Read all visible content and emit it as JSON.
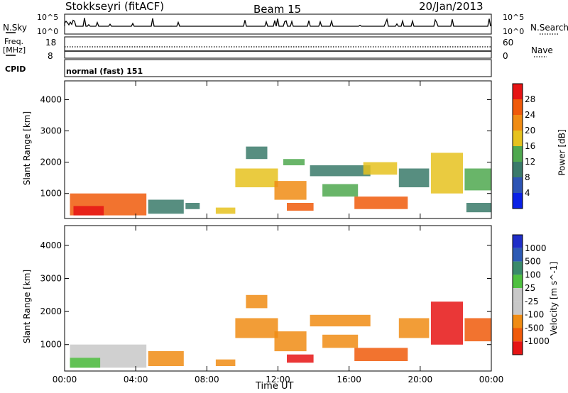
{
  "header": {
    "station": "Stokkseyri (fitACF)",
    "beam": "Beam 15",
    "date": "20/Jan/2013"
  },
  "noise_panel": {
    "left_label": "N.Sky",
    "right_label": "N.Search",
    "ticks": [
      "10^5",
      "10^0"
    ]
  },
  "freq_panel": {
    "left_label_1": "Freq.",
    "left_label_2": "[MHz]",
    "left_ticks": [
      "18",
      "8"
    ],
    "right_label": "Nave",
    "right_ticks": [
      "60",
      "0"
    ]
  },
  "cpid": {
    "label": "CPID",
    "mode": "normal (fast) 151"
  },
  "colors": {
    "power": [
      "#0a21e6",
      "#2d54b4",
      "#3a7a6a",
      "#4fa84f",
      "#e6c21e",
      "#f08c14",
      "#f05a0a",
      "#e61414"
    ],
    "velocity": [
      "#e61414",
      "#f05a0a",
      "#f08c14",
      "#c8c8c8",
      "#c8c8c8",
      "#4fc040",
      "#3a8a6a",
      "#2d5ab4",
      "#1f2ec8"
    ]
  },
  "chart_data": [
    {
      "type": "heatmap",
      "title": "",
      "xlabel": "",
      "ylabel": "Slant Range [km]",
      "xlim": [
        0,
        24
      ],
      "ylim": [
        200,
        4600
      ],
      "x_ticks": [
        "00:00",
        "04:00",
        "08:00",
        "12:00",
        "16:00",
        "20:00",
        "00:00"
      ],
      "y_ticks": [
        1000,
        2000,
        3000,
        4000
      ],
      "colorbar": {
        "label": "Power [dB]",
        "ticks": [
          "4",
          "8",
          "12",
          "16",
          "20",
          "24",
          "28"
        ]
      },
      "regions": [
        {
          "t0": 0.3,
          "t1": 4.6,
          "r0": 300,
          "r1": 1000,
          "level": 7
        },
        {
          "t0": 0.5,
          "t1": 2.2,
          "r0": 300,
          "r1": 600,
          "level": 8
        },
        {
          "t0": 4.7,
          "t1": 6.7,
          "r0": 350,
          "r1": 800,
          "level": 3
        },
        {
          "t0": 6.8,
          "t1": 7.6,
          "r0": 500,
          "r1": 700,
          "level": 3
        },
        {
          "t0": 8.5,
          "t1": 9.6,
          "r0": 350,
          "r1": 550,
          "level": 5
        },
        {
          "t0": 9.6,
          "t1": 12.0,
          "r0": 1200,
          "r1": 1800,
          "level": 5
        },
        {
          "t0": 10.2,
          "t1": 11.4,
          "r0": 2100,
          "r1": 2500,
          "level": 3
        },
        {
          "t0": 11.8,
          "t1": 13.6,
          "r0": 800,
          "r1": 1400,
          "level": 6
        },
        {
          "t0": 12.5,
          "t1": 14.0,
          "r0": 450,
          "r1": 700,
          "level": 7
        },
        {
          "t0": 12.3,
          "t1": 13.5,
          "r0": 1900,
          "r1": 2100,
          "level": 4
        },
        {
          "t0": 13.8,
          "t1": 17.2,
          "r0": 1550,
          "r1": 1900,
          "level": 3
        },
        {
          "t0": 14.5,
          "t1": 16.5,
          "r0": 900,
          "r1": 1300,
          "level": 4
        },
        {
          "t0": 16.8,
          "t1": 18.7,
          "r0": 1600,
          "r1": 2000,
          "level": 5
        },
        {
          "t0": 16.3,
          "t1": 19.3,
          "r0": 500,
          "r1": 900,
          "level": 7
        },
        {
          "t0": 18.8,
          "t1": 20.5,
          "r0": 1200,
          "r1": 1800,
          "level": 3
        },
        {
          "t0": 20.6,
          "t1": 22.4,
          "r0": 1000,
          "r1": 2300,
          "level": 5
        },
        {
          "t0": 22.5,
          "t1": 24.0,
          "r0": 1100,
          "r1": 1800,
          "level": 4
        },
        {
          "t0": 22.6,
          "t1": 24.0,
          "r0": 400,
          "r1": 700,
          "level": 3
        }
      ]
    },
    {
      "type": "heatmap",
      "title": "",
      "xlabel": "Time UT",
      "ylabel": "Slant Range [km]",
      "xlim": [
        0,
        24
      ],
      "ylim": [
        200,
        4600
      ],
      "x_ticks": [
        "00:00",
        "04:00",
        "08:00",
        "12:00",
        "16:00",
        "20:00",
        "00:00"
      ],
      "y_ticks": [
        1000,
        2000,
        3000,
        4000
      ],
      "colorbar": {
        "label": "Velocity [m s^-1]",
        "ticks": [
          "1000",
          "500",
          "100",
          "25",
          "-25",
          "-100",
          "-500",
          "-1000"
        ]
      },
      "regions": [
        {
          "t0": 0.3,
          "t1": 4.6,
          "r0": 300,
          "r1": 1000,
          "level": 5
        },
        {
          "t0": 0.3,
          "t1": 2.0,
          "r0": 300,
          "r1": 600,
          "level": 6
        },
        {
          "t0": 4.7,
          "t1": 6.7,
          "r0": 350,
          "r1": 800,
          "level": 3
        },
        {
          "t0": 8.5,
          "t1": 9.6,
          "r0": 350,
          "r1": 550,
          "level": 3
        },
        {
          "t0": 9.6,
          "t1": 12.0,
          "r0": 1200,
          "r1": 1800,
          "level": 3
        },
        {
          "t0": 10.2,
          "t1": 11.4,
          "r0": 2100,
          "r1": 2500,
          "level": 3
        },
        {
          "t0": 11.8,
          "t1": 13.6,
          "r0": 800,
          "r1": 1400,
          "level": 3
        },
        {
          "t0": 12.5,
          "t1": 14.0,
          "r0": 450,
          "r1": 700,
          "level": 1
        },
        {
          "t0": 13.8,
          "t1": 17.2,
          "r0": 1550,
          "r1": 1900,
          "level": 3
        },
        {
          "t0": 14.5,
          "t1": 16.5,
          "r0": 900,
          "r1": 1300,
          "level": 3
        },
        {
          "t0": 16.3,
          "t1": 19.3,
          "r0": 500,
          "r1": 900,
          "level": 2
        },
        {
          "t0": 18.8,
          "t1": 20.5,
          "r0": 1200,
          "r1": 1800,
          "level": 3
        },
        {
          "t0": 20.6,
          "t1": 22.4,
          "r0": 1000,
          "r1": 2300,
          "level": 1
        },
        {
          "t0": 22.5,
          "t1": 24.0,
          "r0": 1100,
          "r1": 1800,
          "level": 2
        }
      ]
    }
  ]
}
